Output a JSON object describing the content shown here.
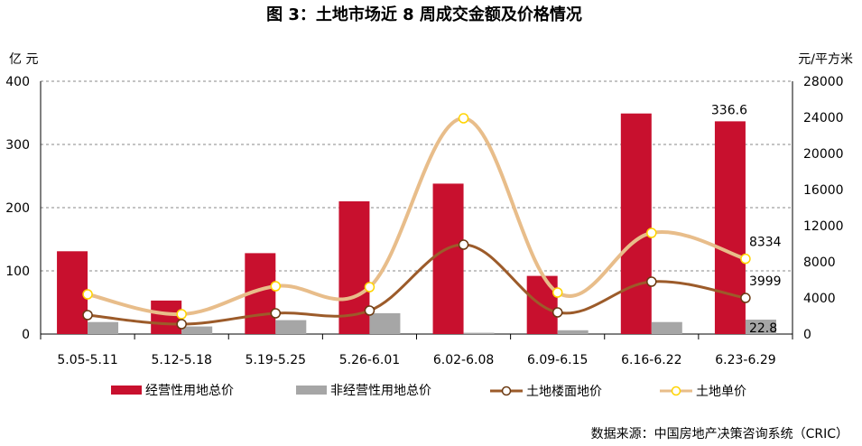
{
  "title": "图 3：土地市场近 8 周成交金额及价格情况",
  "source": "数据来源：中国房地产决策咨询系统（CRIC）",
  "colors": {
    "operating": "#c8102e",
    "non_operating": "#a6a6a6",
    "floor_price": "#9c5b2a",
    "unit_price": "#e8bd8a",
    "marker_fill_floor": "#ffffff",
    "marker_fill_unit": "#ffffff",
    "marker_edge_unit": "#ffd400",
    "marker_edge_floor": "#6b3a12",
    "grid": "#888888"
  },
  "chart_data": {
    "type": "bar",
    "categories": [
      "5.05-5.11",
      "5.12-5.18",
      "5.19-5.25",
      "5.26-6.01",
      "6.02-6.08",
      "6.09-6.15",
      "6.16-6.22",
      "6.23-6.29"
    ],
    "left_axis": {
      "unit": "亿 元",
      "ylim": [
        0,
        400
      ],
      "ticks": [
        "0",
        "100",
        "200",
        "300",
        "400"
      ]
    },
    "right_axis": {
      "unit": "元/平方米",
      "ylim": [
        0,
        28000
      ],
      "ticks": [
        "0",
        "4000",
        "8000",
        "12000",
        "16000",
        "20000",
        "24000",
        "28000"
      ]
    },
    "grid": "dashed horizontal",
    "legend_position": "bottom",
    "series": [
      {
        "name": "经营性用地总价",
        "type": "bar",
        "axis": "left",
        "values": [
          131,
          53,
          128,
          210,
          238,
          92,
          349,
          336.6
        ]
      },
      {
        "name": "非经营性用地总价",
        "type": "bar",
        "axis": "left",
        "values": [
          19,
          12,
          22,
          33,
          2,
          6,
          19,
          22.8
        ]
      },
      {
        "name": "土地楼面地价",
        "type": "line",
        "axis": "right",
        "values": [
          2100,
          1100,
          2300,
          2600,
          9900,
          2400,
          5800,
          3999
        ]
      },
      {
        "name": "土地单价",
        "type": "line",
        "axis": "right",
        "values": [
          4400,
          2200,
          5300,
          5200,
          23900,
          4600,
          11200,
          8334
        ]
      }
    ],
    "data_labels": [
      {
        "series": 0,
        "index": 7,
        "text": "336.6"
      },
      {
        "series": 3,
        "index": 7,
        "text": "8334"
      },
      {
        "series": 2,
        "index": 7,
        "text": "3999"
      },
      {
        "series": 1,
        "index": 7,
        "text": "22.8"
      }
    ]
  }
}
